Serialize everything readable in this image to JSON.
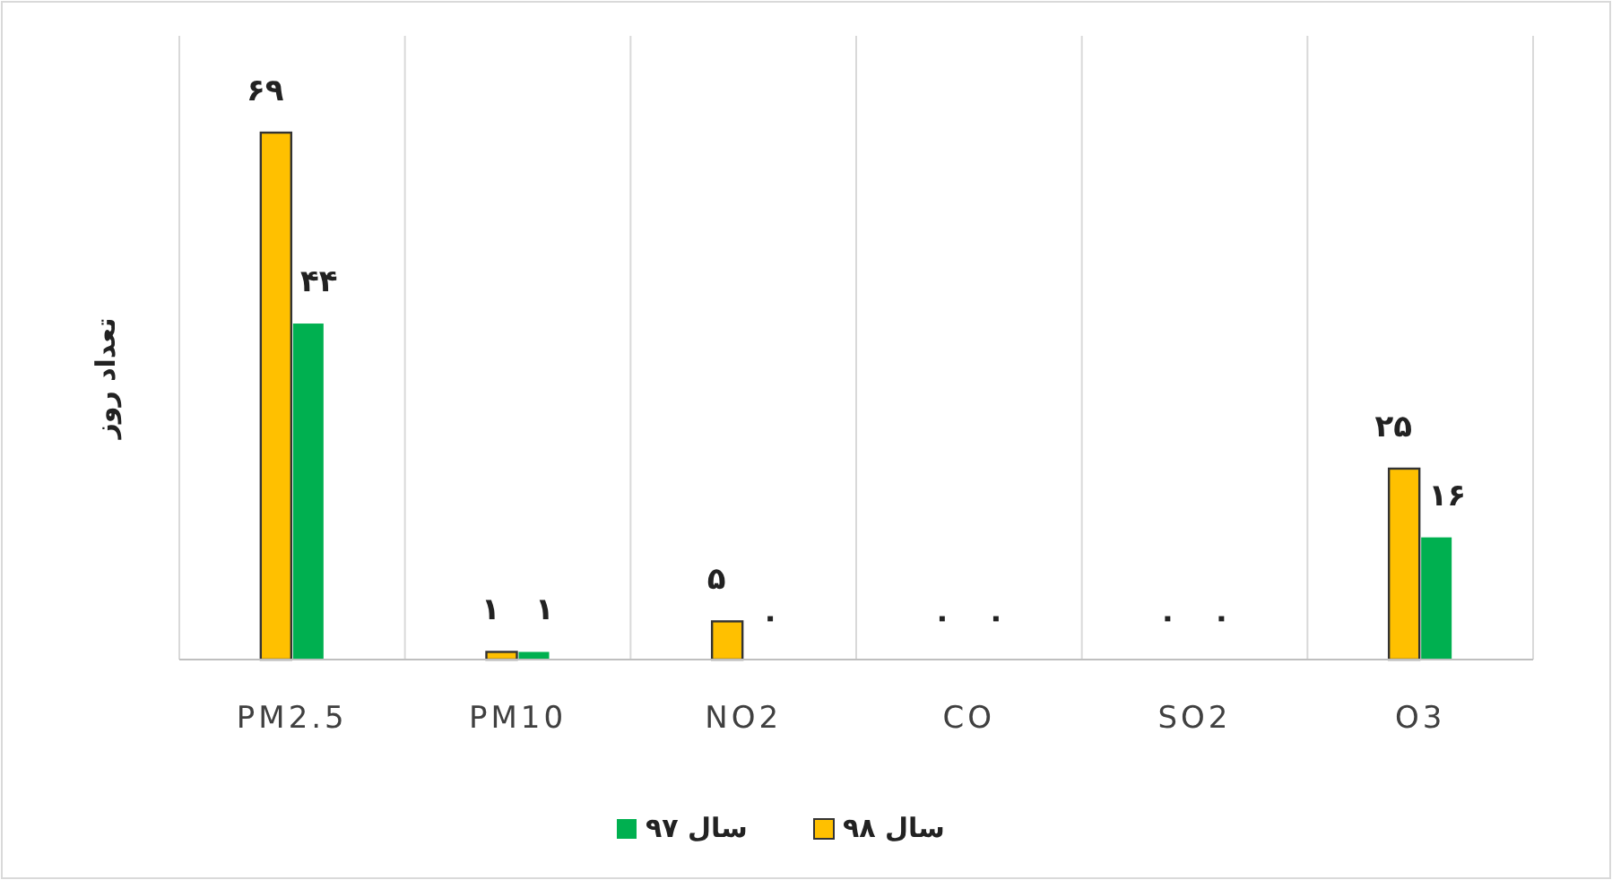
{
  "chart_data": {
    "type": "bar",
    "ylabel": "تعداد روز",
    "categories": [
      "PM2.5",
      "PM10",
      "NO2",
      "CO",
      "SO2",
      "O3"
    ],
    "series": [
      {
        "name": "سال ۹۸",
        "color": "#ffc000",
        "values": [
          69,
          1,
          5,
          0,
          0,
          25
        ],
        "value_labels": [
          "۶۹",
          "۱",
          "۵",
          "۰",
          "۰",
          "۲۵"
        ]
      },
      {
        "name": "سال ۹۷",
        "color": "#00b050",
        "values": [
          44,
          1,
          0,
          0,
          0,
          16
        ],
        "value_labels": [
          "۴۴",
          "۱",
          "۰",
          "۰",
          "۰",
          "۱۶"
        ]
      }
    ],
    "grid": "x",
    "legend": "bottom"
  }
}
